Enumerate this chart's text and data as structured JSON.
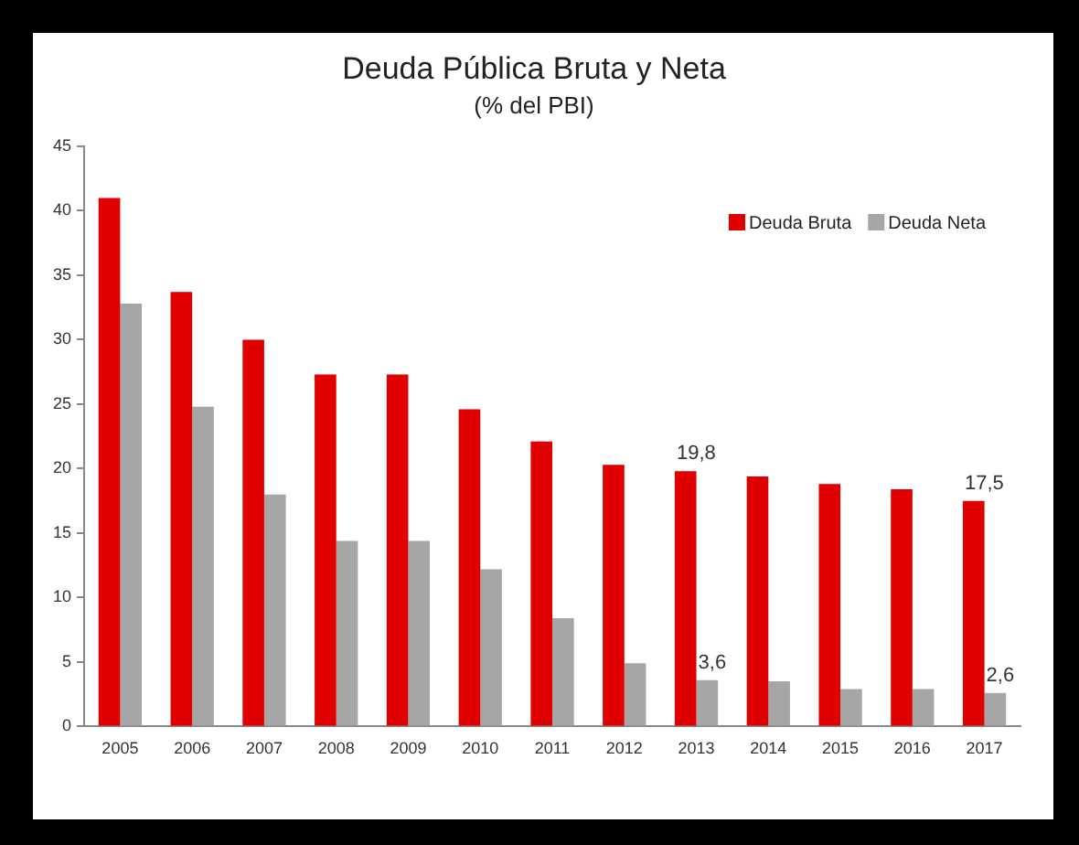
{
  "chart_data": {
    "type": "bar",
    "title": "Deuda Pública Bruta y Neta",
    "subtitle": "(% del PBI)",
    "categories": [
      "2005",
      "2006",
      "2007",
      "2008",
      "2009",
      "2010",
      "2011",
      "2012",
      "2013",
      "2014",
      "2015",
      "2016",
      "2017"
    ],
    "series": [
      {
        "name": "Deuda Bruta",
        "color": "#e00000",
        "values": [
          41,
          33.7,
          30,
          27.3,
          27.3,
          24.6,
          22.1,
          20.3,
          19.8,
          19.4,
          18.8,
          18.4,
          17.5
        ],
        "value_labels": [
          null,
          null,
          null,
          null,
          null,
          null,
          null,
          null,
          "19,8",
          null,
          null,
          null,
          "17,5"
        ]
      },
      {
        "name": "Deuda Neta",
        "color": "#a6a6a6",
        "values": [
          32.8,
          24.8,
          18,
          14.4,
          14.4,
          12.2,
          8.4,
          4.9,
          3.6,
          3.5,
          2.9,
          2.9,
          2.6
        ],
        "value_labels": [
          null,
          null,
          null,
          null,
          null,
          null,
          null,
          null,
          "3,6",
          null,
          null,
          null,
          "2,6"
        ]
      }
    ],
    "ylim": [
      0,
      45
    ],
    "yticks": [
      0,
      5,
      10,
      15,
      20,
      25,
      30,
      35,
      40,
      45
    ],
    "grid": false,
    "legend": "top right"
  }
}
